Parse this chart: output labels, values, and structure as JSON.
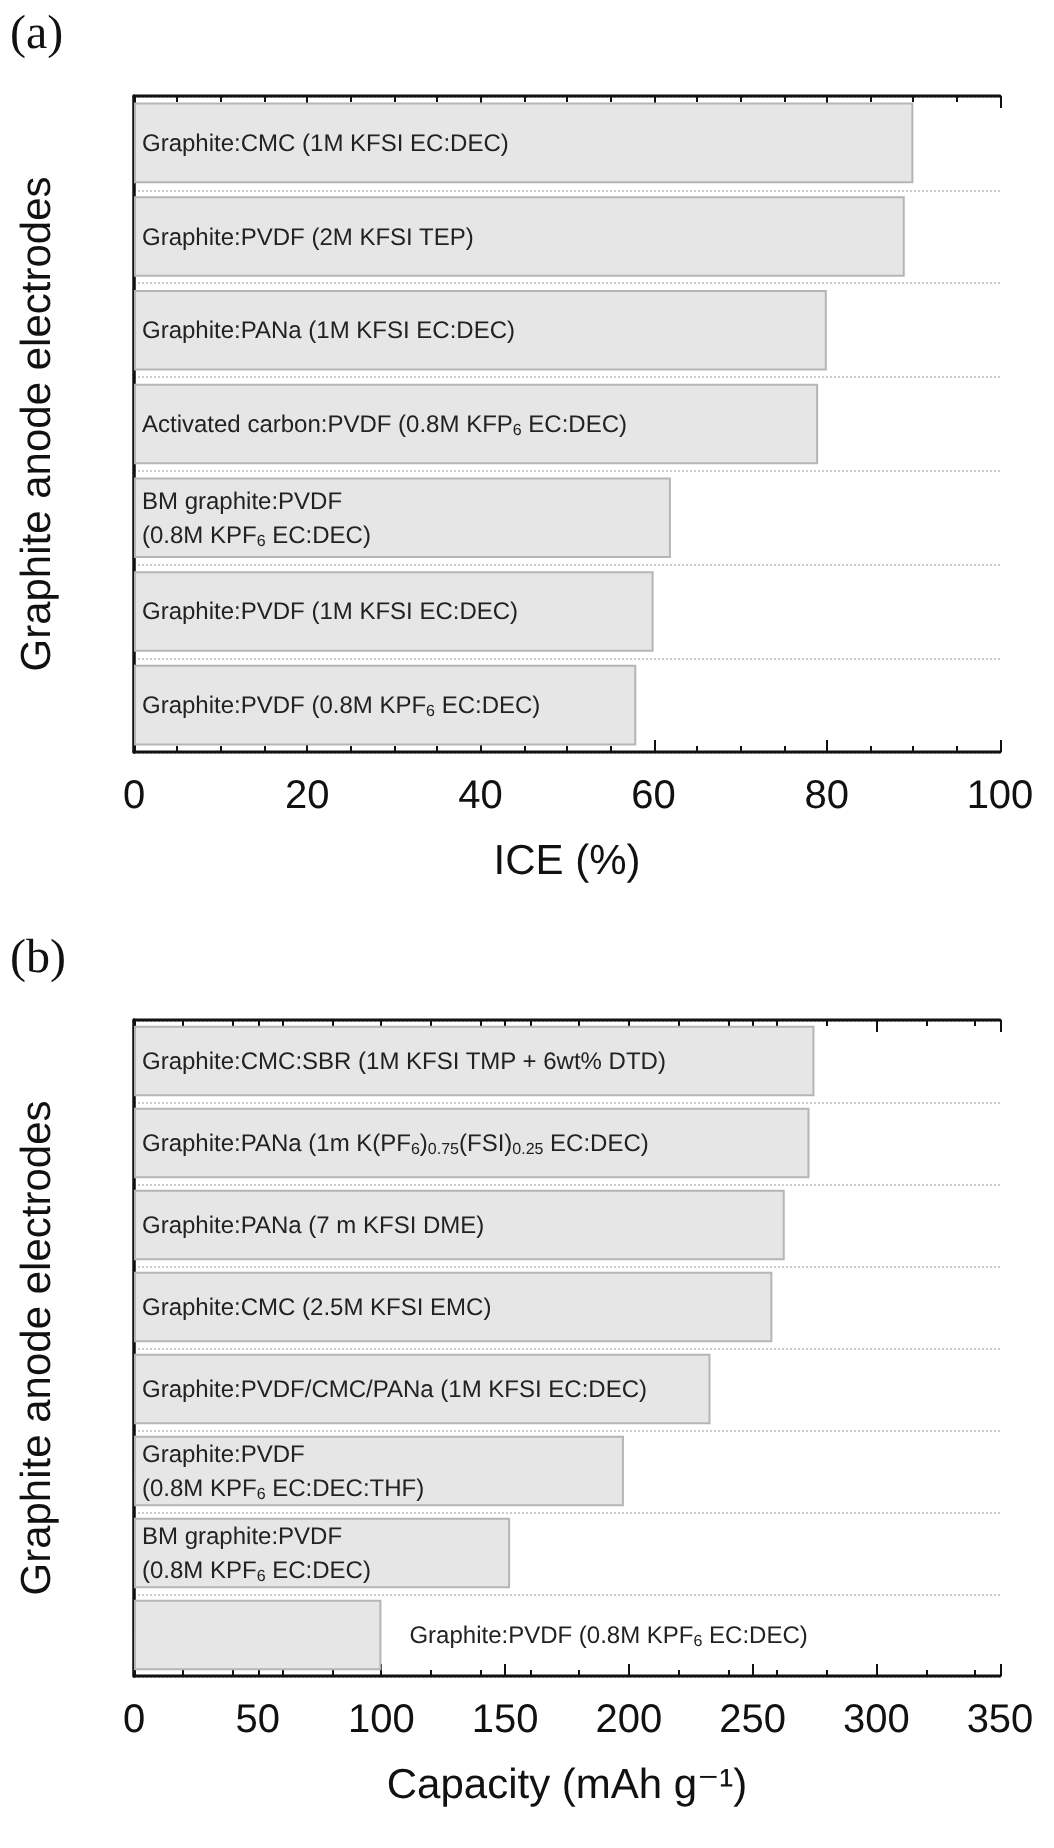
{
  "chart_data": [
    {
      "type": "bar",
      "title": "(a)",
      "orientation": "horizontal",
      "xlabel": "ICE (%)",
      "ylabel": "Graphite anode electrodes",
      "categories": [
        "Graphite:CMC (1M KFSI EC:DEC)",
        "Graphite:PVDF (2M KFSI TEP)",
        "Graphite:PANa (1M KFSI EC:DEC)",
        "Activated carbon:PVDF (0.8M KFP$_{6}$ EC:DEC)",
        "BM graphite:PVDF\n(0.8M KPF$_{6}$ EC:DEC)",
        "Graphite:PVDF (1M KFSI EC:DEC)",
        "Graphite:PVDF (0.8M KPF$_{6}$ EC:DEC)"
      ],
      "values": [
        90,
        89,
        80,
        79,
        62,
        60,
        58
      ],
      "color": "#e6e6e6",
      "xlim": [
        0,
        100
      ],
      "xticks": [
        0,
        20,
        40,
        60,
        80,
        100
      ],
      "grid": "y"
    },
    {
      "type": "bar",
      "title": "(b)",
      "orientation": "horizontal",
      "xlabel": "Capacity (mAh g⁻¹)",
      "ylabel": "Graphite anode electrodes",
      "categories": [
        "Graphite:CMC:SBR (1M KFSI TMP + 6wt% DTD)",
        "Graphite:PANa (1m K(PF$_{6}$)$_{0.75}$(FSI)$_{0.25}$ EC:DEC)",
        "Graphite:PANa (7 m KFSI DME)",
        "Graphite:CMC (2.5M KFSI EMC)",
        "Graphite:PVDF/CMC/PANa (1M KFSI EC:DEC)",
        "Graphite:PVDF\n(0.8M KPF$_{6}$ EC:DEC:THF)",
        "BM graphite:PVDF\n(0.8M KPF$_{6}$ EC:DEC)",
        "Graphite:PVDF (0.8M KPF$_{6}$ EC:DEC)"
      ],
      "values": [
        275,
        273,
        263,
        258,
        233,
        198,
        152,
        100
      ],
      "color": "#e6e6e6",
      "xlim": [
        0,
        350
      ],
      "xticks": [
        0,
        50,
        100,
        150,
        200,
        250,
        300,
        350
      ],
      "grid": "y"
    }
  ]
}
